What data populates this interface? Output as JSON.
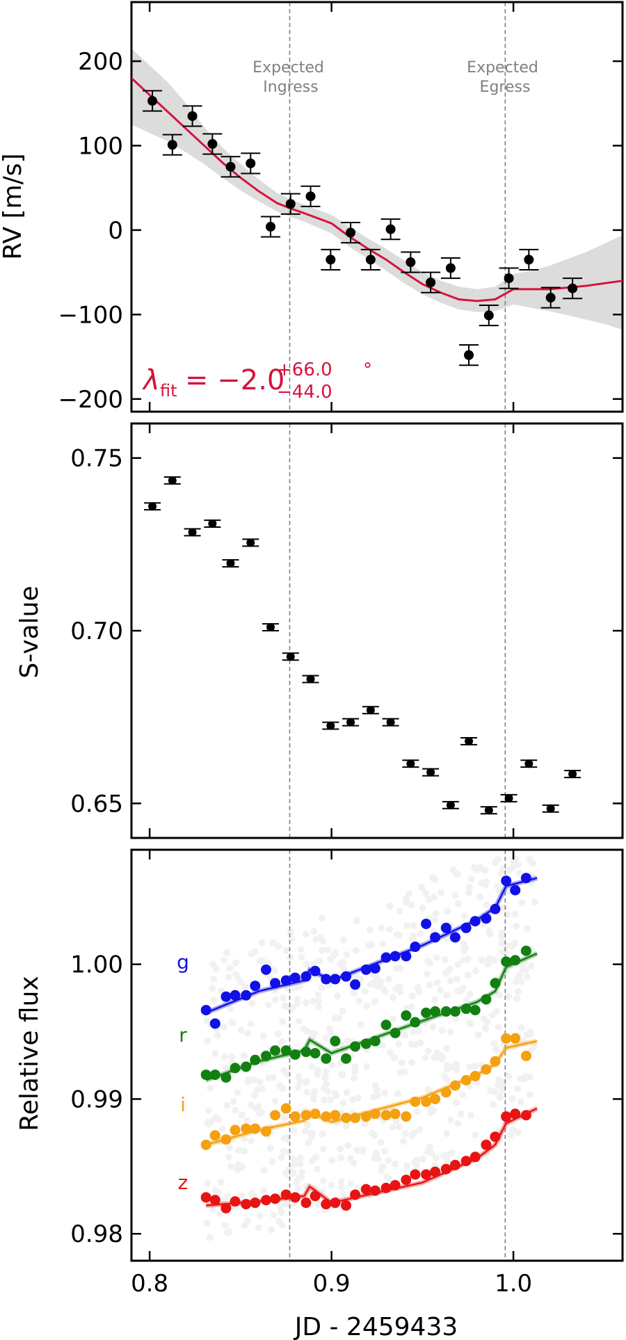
{
  "figure": {
    "xlabel": "JD - 2459433",
    "x_ticks": [
      0.8,
      0.9,
      1.0
    ],
    "xlim": [
      0.79,
      1.06
    ],
    "vlines": [
      {
        "x": 0.877,
        "label": [
          "Expected",
          "Ingress"
        ]
      },
      {
        "x": 0.9955,
        "label": [
          "Expected",
          "Egress"
        ]
      }
    ]
  },
  "chart_data": [
    {
      "type": "scatter",
      "panel": "rv",
      "ylabel": "RV [m/s]",
      "ylim": [
        -215,
        270
      ],
      "y_ticks": [
        200,
        100,
        0,
        -100,
        -200
      ],
      "annotation": "λ_fit = −2.0 (+66.0 / −44.0) °",
      "colors": {
        "model": "#d6133c",
        "band": "#dcdcdc",
        "points": "#000000"
      },
      "series": [
        {
          "x": [
            0.8015,
            0.8125,
            0.8235,
            0.8345,
            0.8445,
            0.8555,
            0.8665,
            0.8775,
            0.8885,
            0.8995,
            0.9105,
            0.9215,
            0.9325,
            0.9435,
            0.9545,
            0.9655,
            0.9755,
            0.9865,
            0.9975,
            1.0085,
            1.0205,
            1.0325
          ],
          "y": [
            153,
            101,
            135,
            102,
            75,
            79,
            4,
            31,
            40,
            -35,
            -3,
            -35,
            1,
            -38,
            -62,
            -45,
            -148,
            -101,
            -57,
            -35,
            -80,
            -69
          ],
          "err": [
            12,
            12,
            12,
            12,
            12,
            12,
            12,
            12,
            12,
            12,
            12,
            12,
            12,
            12,
            12,
            12,
            12,
            12,
            12,
            12,
            12,
            12
          ]
        }
      ],
      "model": {
        "x": [
          0.79,
          0.8,
          0.81,
          0.82,
          0.83,
          0.84,
          0.85,
          0.86,
          0.87,
          0.877,
          0.885,
          0.9,
          0.91,
          0.92,
          0.93,
          0.94,
          0.95,
          0.96,
          0.97,
          0.98,
          0.99,
          0.995,
          1.0,
          1.01,
          1.02,
          1.03,
          1.04,
          1.05,
          1.06
        ],
        "y": [
          180,
          160,
          140,
          120,
          100,
          80,
          62,
          46,
          32,
          26,
          20,
          8,
          -8,
          -22,
          -35,
          -50,
          -64,
          -74,
          -82,
          -84,
          -82,
          -76,
          -70,
          -70,
          -70,
          -68,
          -66,
          -63,
          -60
        ],
        "lower": [
          125,
          115,
          105,
          92,
          78,
          62,
          47,
          34,
          22,
          16,
          10,
          -4,
          -20,
          -34,
          -48,
          -63,
          -76,
          -86,
          -94,
          -97,
          -96,
          -92,
          -88,
          -92,
          -96,
          -101,
          -106,
          -111,
          -118
        ],
        "upper": [
          215,
          195,
          175,
          150,
          122,
          98,
          78,
          60,
          44,
          37,
          30,
          18,
          4,
          -10,
          -22,
          -36,
          -50,
          -60,
          -67,
          -70,
          -67,
          -60,
          -52,
          -48,
          -42,
          -34,
          -26,
          -16,
          -6
        ]
      }
    },
    {
      "type": "scatter",
      "panel": "svalue",
      "ylabel": "S-value",
      "ylim": [
        0.64,
        0.76
      ],
      "y_ticks": [
        0.75,
        0.7,
        0.65
      ],
      "series": [
        {
          "x": [
            0.8015,
            0.8125,
            0.8235,
            0.8345,
            0.8445,
            0.8555,
            0.8665,
            0.8775,
            0.8885,
            0.8995,
            0.9105,
            0.9215,
            0.9325,
            0.9435,
            0.9545,
            0.9655,
            0.9755,
            0.9865,
            0.9975,
            1.0085,
            1.0205,
            1.0325
          ],
          "y": [
            0.736,
            0.7435,
            0.7285,
            0.731,
            0.7195,
            0.7255,
            0.701,
            0.6925,
            0.686,
            0.6725,
            0.6735,
            0.677,
            0.6735,
            0.6615,
            0.659,
            0.6495,
            0.668,
            0.648,
            0.6515,
            0.6615,
            0.6485,
            0.6585
          ],
          "err": [
            0.001,
            0.001,
            0.001,
            0.001,
            0.001,
            0.001,
            0.001,
            0.001,
            0.001,
            0.001,
            0.001,
            0.001,
            0.001,
            0.001,
            0.001,
            0.001,
            0.001,
            0.001,
            0.001,
            0.001,
            0.001,
            0.001
          ]
        }
      ]
    },
    {
      "type": "scatter",
      "panel": "flux",
      "ylabel": "Relative flux",
      "ylim": [
        0.978,
        1.0085
      ],
      "y_ticks": [
        1.0,
        0.99,
        0.98
      ],
      "y_tick_labels": [
        "1.00",
        "0.99",
        "0.98"
      ],
      "series": [
        {
          "name": "g",
          "color": "#1010e8",
          "x": [
            0.831,
            0.836,
            0.842,
            0.847,
            0.853,
            0.858,
            0.864,
            0.869,
            0.875,
            0.88,
            0.886,
            0.891,
            0.897,
            0.902,
            0.908,
            0.913,
            0.919,
            0.924,
            0.93,
            0.935,
            0.941,
            0.946,
            0.952,
            0.957,
            0.963,
            0.968,
            0.974,
            0.979,
            0.985,
            0.99,
            0.996,
            1.001,
            1.007
          ],
          "y": [
            0.9966,
            0.9956,
            0.9976,
            0.9977,
            0.9977,
            0.9984,
            0.9996,
            0.9986,
            0.9988,
            0.999,
            0.9991,
            0.9995,
            0.9989,
            0.9989,
            0.9991,
            0.9985,
            0.9996,
            0.9997,
            1.0005,
            1.0006,
            1.0006,
            1.0013,
            1.003,
            1.002,
            1.0027,
            1.002,
            1.0027,
            1.0032,
            1.0034,
            1.0041,
            1.0062,
            1.0055,
            1.0064
          ],
          "model": {
            "x": [
              0.831,
              0.86,
              0.885,
              0.888,
              0.9,
              0.95,
              0.98,
              0.99,
              0.996,
              1.013
            ],
            "y": [
              0.9964,
              0.998,
              0.9988,
              0.9996,
              0.9988,
              1.0014,
              1.0033,
              1.0042,
              1.0058,
              1.0064
            ]
          }
        },
        {
          "name": "r",
          "color": "#118011",
          "x": [
            0.831,
            0.836,
            0.842,
            0.847,
            0.853,
            0.858,
            0.864,
            0.869,
            0.875,
            0.88,
            0.886,
            0.891,
            0.897,
            0.902,
            0.908,
            0.913,
            0.919,
            0.924,
            0.93,
            0.935,
            0.941,
            0.946,
            0.952,
            0.957,
            0.963,
            0.968,
            0.974,
            0.979,
            0.985,
            0.99,
            0.996,
            1.001,
            1.007
          ],
          "y": [
            0.9918,
            0.9918,
            0.9916,
            0.9923,
            0.9924,
            0.9929,
            0.9932,
            0.9936,
            0.9936,
            0.9933,
            0.9935,
            0.9934,
            0.993,
            0.9943,
            0.993,
            0.9939,
            0.9941,
            0.9943,
            0.9955,
            0.9949,
            0.9962,
            0.9957,
            0.9964,
            0.9965,
            0.9965,
            0.9965,
            0.9967,
            0.9966,
            0.9974,
            0.9986,
            1.0002,
            1.0003,
            1.001
          ],
          "model": {
            "x": [
              0.831,
              0.86,
              0.885,
              0.888,
              0.9,
              0.95,
              0.98,
              0.99,
              0.996,
              1.013
            ],
            "y": [
              0.9914,
              0.9928,
              0.9936,
              0.9944,
              0.9934,
              0.9958,
              0.9972,
              0.998,
              0.9998,
              1.0008
            ]
          }
        },
        {
          "name": "i",
          "color": "#f5a00f",
          "x": [
            0.831,
            0.836,
            0.842,
            0.847,
            0.853,
            0.858,
            0.864,
            0.869,
            0.875,
            0.88,
            0.886,
            0.891,
            0.897,
            0.902,
            0.908,
            0.913,
            0.919,
            0.924,
            0.93,
            0.935,
            0.941,
            0.946,
            0.952,
            0.957,
            0.963,
            0.968,
            0.974,
            0.979,
            0.985,
            0.99,
            0.996,
            1.001,
            1.007
          ],
          "y": [
            0.9866,
            0.9873,
            0.987,
            0.9877,
            0.9878,
            0.9878,
            0.9876,
            0.9888,
            0.9893,
            0.9887,
            0.9888,
            0.9889,
            0.9887,
            0.9888,
            0.9886,
            0.9886,
            0.9887,
            0.9889,
            0.9888,
            0.9889,
            0.9887,
            0.9898,
            0.9898,
            0.99,
            0.9905,
            0.991,
            0.9914,
            0.9917,
            0.9922,
            0.9928,
            0.9945,
            0.9945,
            0.9932
          ],
          "model": {
            "x": [
              0.831,
              0.86,
              0.885,
              0.888,
              0.9,
              0.95,
              0.98,
              0.99,
              0.996,
              1.013
            ],
            "y": [
              0.9866,
              0.9877,
              0.9884,
              0.989,
              0.9883,
              0.9901,
              0.9918,
              0.9926,
              0.9938,
              0.9943
            ]
          }
        },
        {
          "name": "z",
          "color": "#e81313",
          "x": [
            0.831,
            0.836,
            0.842,
            0.847,
            0.853,
            0.858,
            0.864,
            0.869,
            0.875,
            0.88,
            0.886,
            0.891,
            0.897,
            0.902,
            0.908,
            0.913,
            0.919,
            0.924,
            0.93,
            0.935,
            0.941,
            0.946,
            0.952,
            0.957,
            0.963,
            0.968,
            0.974,
            0.979,
            0.985,
            0.99,
            0.996,
            1.001,
            1.007
          ],
          "y": [
            0.9827,
            0.9825,
            0.9819,
            0.9824,
            0.9822,
            0.9823,
            0.9825,
            0.9826,
            0.9829,
            0.9827,
            0.9823,
            0.9828,
            0.9822,
            0.9823,
            0.9821,
            0.9829,
            0.9833,
            0.9832,
            0.9834,
            0.9836,
            0.984,
            0.9844,
            0.9844,
            0.9846,
            0.9848,
            0.9851,
            0.9854,
            0.9857,
            0.9866,
            0.9872,
            0.9887,
            0.9889,
            0.9888
          ],
          "model": {
            "x": [
              0.831,
              0.86,
              0.885,
              0.888,
              0.9,
              0.95,
              0.98,
              0.99,
              0.996,
              1.013
            ],
            "y": [
              0.9821,
              0.9824,
              0.9828,
              0.9835,
              0.9823,
              0.9838,
              0.9856,
              0.9866,
              0.9882,
              0.9893
            ]
          }
        }
      ]
    }
  ]
}
